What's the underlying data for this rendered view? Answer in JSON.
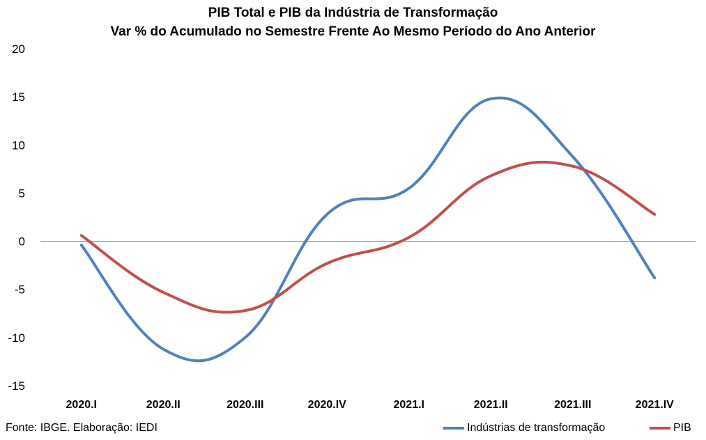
{
  "chart_data": {
    "type": "line",
    "title": "PIB Total e PIB da Indústria de Transformação",
    "subtitle": "Var % do Acumulado no Semestre Frente Ao Mesmo Período do Ano Anterior",
    "categories": [
      "2020.I",
      "2020.II",
      "2020.III",
      "2020.IV",
      "2021.I",
      "2021.II",
      "2021.III",
      "2021.IV"
    ],
    "ylim": [
      -15,
      20
    ],
    "yticks": [
      "20",
      "15",
      "10",
      "5",
      "0",
      "-5",
      "-10",
      "-15"
    ],
    "grid": false,
    "legend_position": "bottom-right",
    "series": [
      {
        "name": "Indústrias de transformação",
        "color": "#4f81bd",
        "values": [
          -0.4,
          -11.2,
          -10.0,
          2.8,
          5.5,
          14.8,
          8.8,
          -3.8
        ]
      },
      {
        "name": "PIB",
        "color": "#c0504d",
        "values": [
          0.6,
          -5.3,
          -7.2,
          -2.3,
          0.4,
          6.8,
          7.8,
          2.8
        ]
      }
    ],
    "source": "Fonte: IBGE. Elaboração: IEDI"
  }
}
